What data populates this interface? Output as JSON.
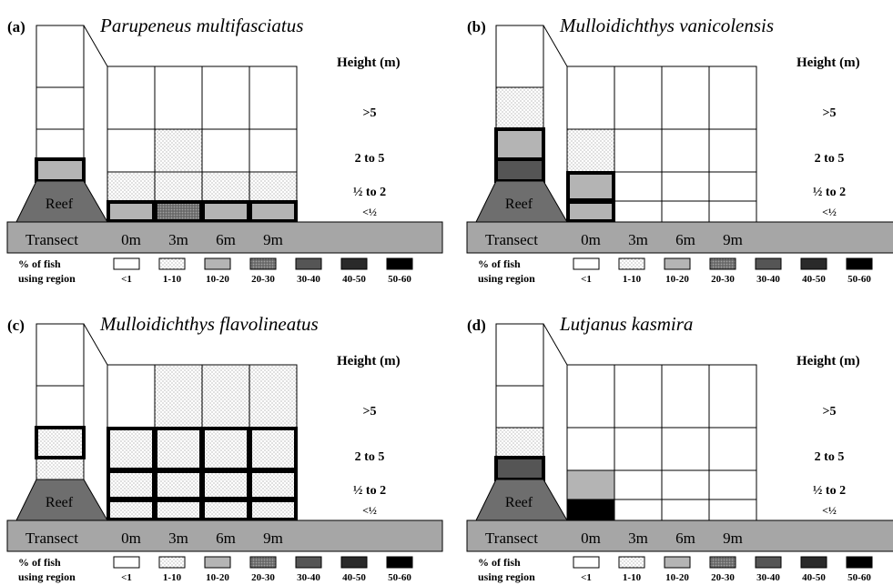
{
  "colors": {
    "white": "#ffffff",
    "light_gray": "#b4b4b4",
    "medium_gray": "#808080",
    "dark_gray": "#555555",
    "black": "#000000",
    "reef": "#6e6e6e",
    "transect_bar": "#a6a6a6"
  },
  "common": {
    "height_header": "Height (m)",
    "height_labels": [
      ">5",
      "2 to 5",
      "½ to 2",
      "<½"
    ],
    "reef_label": "Reef",
    "transect_label": "Transect",
    "transect_positions": [
      "0m",
      "3m",
      "6m",
      "9m"
    ],
    "legend_title_line1": "% of fish",
    "legend_title_line2": "using region",
    "legend": [
      {
        "label": "<1",
        "pattern": "white"
      },
      {
        "label": "1-10",
        "pattern": "dotted"
      },
      {
        "label": "10-20",
        "pattern": "light"
      },
      {
        "label": "20-30",
        "pattern": "medium_dotted"
      },
      {
        "label": "30-40",
        "pattern": "dark"
      },
      {
        "label": "40-50",
        "pattern": "darker"
      },
      {
        "label": "50-60",
        "pattern": "black"
      }
    ]
  },
  "panels": [
    {
      "letter": "(a)",
      "species": "Parupeneus multifasciatus",
      "reef_column": [
        "white",
        "white",
        "white",
        "light",
        "white"
      ],
      "reef_highlight": [
        3
      ],
      "grid": [
        [
          "white",
          "white",
          "white",
          "white"
        ],
        [
          "white",
          "dotted",
          "white",
          "white"
        ],
        [
          "dotted",
          "dotted",
          "dotted",
          "dotted"
        ],
        [
          "light",
          "medium_dotted",
          "light",
          "light"
        ]
      ],
      "grid_highlight": [
        [
          3,
          0
        ],
        [
          3,
          1
        ],
        [
          3,
          2
        ],
        [
          3,
          3
        ]
      ]
    },
    {
      "letter": "(b)",
      "species": "Mulloidichthys vanicolensis",
      "reef_column": [
        "white",
        "dotted",
        "light",
        "dark",
        "white"
      ],
      "reef_highlight": [
        2,
        3
      ],
      "grid": [
        [
          "white",
          "white",
          "white",
          "white"
        ],
        [
          "dotted",
          "white",
          "white",
          "white"
        ],
        [
          "light",
          "white",
          "white",
          "white"
        ],
        [
          "light",
          "white",
          "white",
          "white"
        ]
      ],
      "grid_highlight": [
        [
          2,
          0
        ],
        [
          3,
          0
        ]
      ]
    },
    {
      "letter": "(c)",
      "species": "Mulloidichthys flavolineatus",
      "reef_column": [
        "white",
        "white",
        "dotted",
        "dotted",
        "white"
      ],
      "reef_highlight": [
        2
      ],
      "grid": [
        [
          "white",
          "dotted",
          "dotted",
          "dotted"
        ],
        [
          "dotted",
          "dotted",
          "dotted",
          "dotted"
        ],
        [
          "dotted",
          "dotted",
          "dotted",
          "dotted"
        ],
        [
          "dotted",
          "dotted",
          "dotted",
          "dotted"
        ]
      ],
      "grid_highlight": [
        [
          1,
          0
        ],
        [
          1,
          1
        ],
        [
          1,
          2
        ],
        [
          1,
          3
        ],
        [
          2,
          0
        ],
        [
          2,
          1
        ],
        [
          2,
          2
        ],
        [
          2,
          3
        ],
        [
          3,
          0
        ],
        [
          3,
          1
        ],
        [
          3,
          2
        ],
        [
          3,
          3
        ]
      ]
    },
    {
      "letter": "(d)",
      "species": "Lutjanus kasmira",
      "reef_column": [
        "white",
        "white",
        "dotted",
        "dark",
        "white"
      ],
      "reef_highlight": [
        3
      ],
      "grid": [
        [
          "white",
          "white",
          "white",
          "white"
        ],
        [
          "white",
          "white",
          "white",
          "white"
        ],
        [
          "light",
          "white",
          "white",
          "white"
        ],
        [
          "black",
          "white",
          "white",
          "white"
        ]
      ],
      "grid_highlight": []
    }
  ]
}
